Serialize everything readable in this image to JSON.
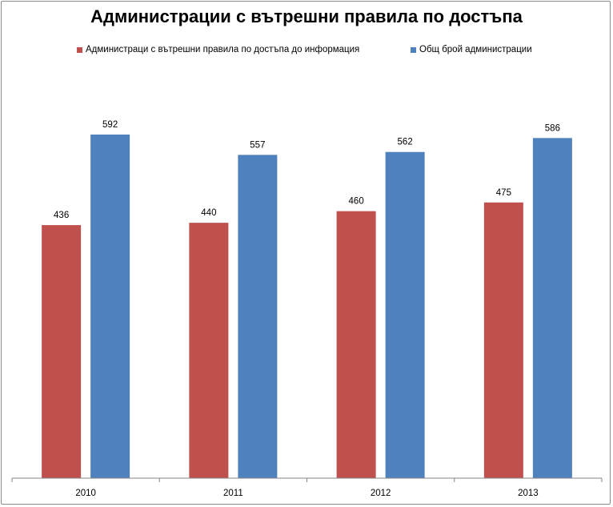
{
  "chart_data": {
    "type": "bar",
    "title": "Администрации с вътрешни правила по достъпа",
    "categories": [
      "2010",
      "2011",
      "2012",
      "2013"
    ],
    "series": [
      {
        "name": "Администраци с вътрешни правила  по достъпа до информация",
        "color": "#c0504d",
        "values": [
          436,
          440,
          460,
          475
        ]
      },
      {
        "name": "Общ брой администрации",
        "color": "#4f81bd",
        "values": [
          592,
          557,
          562,
          586
        ]
      }
    ],
    "ylim": [
      0,
      700
    ],
    "grid": false,
    "legend_position": "top",
    "xlabel": "",
    "ylabel": ""
  }
}
